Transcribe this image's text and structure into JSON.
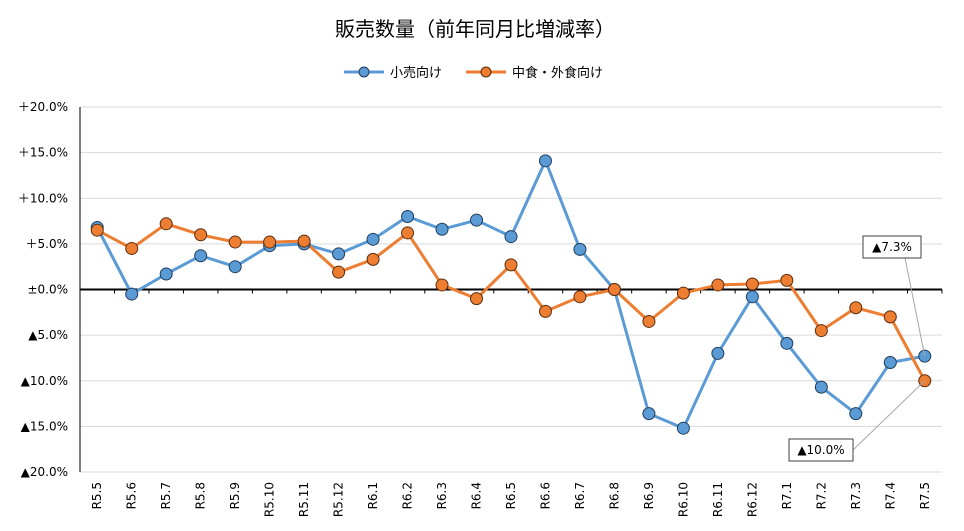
{
  "chart_data": {
    "type": "line",
    "title": "販売数量（前年同月比増減率）",
    "categories": [
      "R5.5",
      "R5.6",
      "R5.7",
      "R5.8",
      "R5.9",
      "R5.10",
      "R5.11",
      "R5.12",
      "R6.1",
      "R6.2",
      "R6.3",
      "R6.4",
      "R6.5",
      "R6.6",
      "R6.7",
      "R6.8",
      "R6.9",
      "R6.10",
      "R6.11",
      "R6.12",
      "R7.1",
      "R7.2",
      "R7.3",
      "R7.4",
      "R7.5"
    ],
    "series": [
      {
        "name": "小売向け",
        "color": "#5b9bd5",
        "values": [
          6.8,
          -0.5,
          1.7,
          3.7,
          2.5,
          4.8,
          5.0,
          3.9,
          5.5,
          8.0,
          6.6,
          7.6,
          5.8,
          14.1,
          4.4,
          0.0,
          -13.6,
          -15.2,
          -7.0,
          -0.8,
          -5.9,
          -10.7,
          -13.6,
          -8.0,
          -7.3
        ]
      },
      {
        "name": "中食・外食向け",
        "color": "#ed7d31",
        "values": [
          6.5,
          4.5,
          7.2,
          6.0,
          5.2,
          5.2,
          5.3,
          1.9,
          3.3,
          6.2,
          0.5,
          -1.0,
          2.7,
          -2.4,
          -0.8,
          0.0,
          -3.5,
          -0.4,
          0.5,
          0.6,
          1.0,
          -4.5,
          -2.0,
          -3.0,
          -10.0
        ]
      }
    ],
    "y_ticks": [
      "＋20.0%",
      "＋15.0%",
      "＋10.0%",
      "＋5.0%",
      "±0.0%",
      "▲5.0%",
      "▲10.0%",
      "▲15.0%",
      "▲20.0%"
    ],
    "ylim": [
      -20,
      20
    ],
    "grid": true,
    "legend_position": "top-center",
    "annotations": [
      {
        "text": "▲7.3%",
        "series": 0,
        "index": 24
      },
      {
        "text": "▲10.0%",
        "series": 1,
        "index": 24
      }
    ]
  }
}
